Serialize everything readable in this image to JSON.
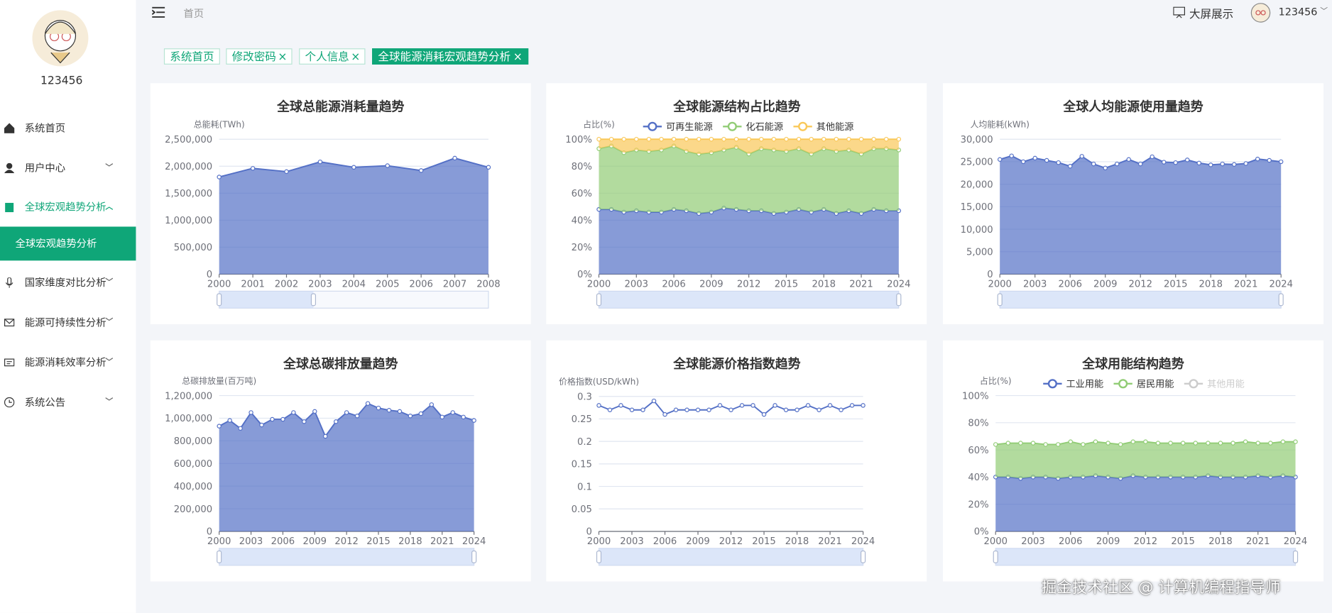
{
  "sidebar": {
    "username": "123456",
    "menu": [
      "系统首页",
      "用户中心",
      "全球宏观趋势分析",
      "全球宏观趋势分析",
      "国家维度对比分析",
      "能源可持续性分析",
      "能源消耗效率分析",
      "系统公告"
    ]
  },
  "header": {
    "breadcrumb": "首页",
    "screen_button": "大屏展示",
    "user": "123456"
  },
  "tabs": [
    "系统首页",
    "修改密码",
    "个人信息",
    "全球能源消耗宏观趋势分析"
  ],
  "watermark": "掘金技术社区 @ 计算机编程指导师",
  "chart_data": [
    {
      "type": "line",
      "title": "全球总能源消耗量趋势",
      "y_label": "总能耗(TWh)",
      "grid": true,
      "area": true,
      "categories": [
        "2000",
        "2001",
        "2002",
        "2003",
        "2004",
        "2005",
        "2006",
        "2007",
        "2008"
      ],
      "series": [
        {
          "color": "#5470c6",
          "values": [
            1800000,
            1960000,
            1900000,
            2080000,
            1980000,
            2010000,
            1920000,
            2150000,
            1980000
          ]
        }
      ],
      "ylim": [
        0,
        2500000
      ],
      "yticks": [
        0,
        {
          "value": 500000,
          "label": "500,000"
        },
        {
          "value": 1000000,
          "label": "1,000,000"
        },
        {
          "value": 1500000,
          "label": "1,500,000"
        },
        {
          "value": 2000000,
          "label": "2,000,000"
        },
        {
          "value": 2500000,
          "label": "2,500,000"
        }
      ]
    },
    {
      "type": "line",
      "title": "全球能源结构占比趋势",
      "y_label": "占比(%)",
      "grid": true,
      "area": true,
      "stack": true,
      "legend": "top",
      "categories": [
        "2000",
        null,
        null,
        "2003",
        null,
        null,
        "2006",
        null,
        null,
        "2009",
        null,
        null,
        "2012",
        null,
        null,
        "2015",
        null,
        null,
        "2018",
        null,
        null,
        "2021",
        null,
        null,
        "2024"
      ],
      "series": [
        {
          "name": "可再生能源",
          "color": "#5470c6",
          "values": [
            48,
            48,
            46,
            47,
            46,
            46,
            48,
            47,
            45,
            46,
            49,
            48,
            47,
            47,
            45,
            46,
            48,
            46,
            48,
            45,
            47,
            45,
            48,
            47,
            47
          ]
        },
        {
          "name": "化石能源",
          "color": "#91cc75",
          "values": [
            45,
            47,
            44,
            45,
            45,
            46,
            47,
            44,
            44,
            44,
            43,
            46,
            42,
            46,
            47,
            45,
            45,
            43,
            45,
            46,
            45,
            44,
            45,
            46,
            45
          ]
        },
        {
          "name": "其他能源",
          "color": "#fac858",
          "values": [
            7,
            5,
            10,
            8,
            9,
            8,
            5,
            9,
            11,
            10,
            8,
            6,
            11,
            7,
            8,
            9,
            7,
            11,
            7,
            9,
            8,
            11,
            7,
            7,
            8
          ]
        }
      ],
      "ylim": [
        0,
        100
      ],
      "yticks": [
        {
          "value": 0,
          "label": "0%"
        },
        {
          "value": 20,
          "label": "20%"
        },
        {
          "value": 40,
          "label": "40%"
        },
        {
          "value": 60,
          "label": "60%"
        },
        {
          "value": 80,
          "label": "80%"
        },
        {
          "value": 100,
          "label": "100%"
        }
      ]
    },
    {
      "type": "line",
      "title": "全球人均能源使用量趋势",
      "y_label": "人均能耗(kWh)",
      "grid": true,
      "area": true,
      "categories": [
        "2000",
        null,
        null,
        "2003",
        null,
        null,
        "2006",
        null,
        null,
        "2009",
        null,
        null,
        "2012",
        null,
        null,
        "2015",
        null,
        null,
        "2018",
        null,
        null,
        "2021",
        null,
        null,
        "2024"
      ],
      "series": [
        {
          "color": "#5470c6",
          "values": [
            25500,
            26300,
            25000,
            25800,
            25300,
            24800,
            24000,
            26200,
            24500,
            23600,
            24500,
            25500,
            24500,
            26100,
            24900,
            24800,
            25400,
            24700,
            24300,
            24500,
            24400,
            24600,
            25600,
            25300,
            25000
          ]
        }
      ],
      "ylim": [
        0,
        30000
      ],
      "yticks": [
        0,
        {
          "value": 5000,
          "label": "5,000"
        },
        {
          "value": 10000,
          "label": "10,000"
        },
        {
          "value": 15000,
          "label": "15,000"
        },
        {
          "value": 20000,
          "label": "20,000"
        },
        {
          "value": 25000,
          "label": "25,000"
        },
        {
          "value": 30000,
          "label": "30,000"
        }
      ]
    },
    {
      "type": "line",
      "title": "全球总碳排放量趋势",
      "y_label": "总碳排放量(百万吨)",
      "grid": true,
      "area": true,
      "categories": [
        "2000",
        null,
        null,
        "2003",
        null,
        null,
        "2006",
        null,
        null,
        "2009",
        null,
        null,
        "2012",
        null,
        null,
        "2015",
        null,
        null,
        "2018",
        null,
        null,
        "2021",
        null,
        null,
        "2024"
      ],
      "series": [
        {
          "color": "#5470c6",
          "values": [
            930000,
            980000,
            910000,
            1050000,
            940000,
            990000,
            990000,
            1050000,
            970000,
            1060000,
            840000,
            970000,
            1050000,
            1020000,
            1130000,
            1090000,
            1070000,
            1060000,
            1020000,
            1040000,
            1120000,
            1010000,
            1050000,
            1010000,
            980000
          ]
        }
      ],
      "ylim": [
        0,
        1200000
      ],
      "yticks": [
        0,
        {
          "value": 200000,
          "label": "200,000"
        },
        {
          "value": 400000,
          "label": "400,000"
        },
        {
          "value": 600000,
          "label": "600,000"
        },
        {
          "value": 800000,
          "label": "800,000"
        },
        {
          "value": 1000000,
          "label": "1,000,000"
        },
        {
          "value": 1200000,
          "label": "1,200,000"
        }
      ]
    },
    {
      "type": "line",
      "title": "全球能源价格指数趋势",
      "y_label": "价格指数(USD/kWh)",
      "grid": true,
      "area": false,
      "categories": [
        "2000",
        null,
        null,
        "2003",
        null,
        null,
        "2006",
        null,
        null,
        "2009",
        null,
        null,
        "2012",
        null,
        null,
        "2015",
        null,
        null,
        "2018",
        null,
        null,
        "2021",
        null,
        null,
        "2024"
      ],
      "series": [
        {
          "color": "#5470c6",
          "values": [
            0.28,
            0.27,
            0.28,
            0.27,
            0.27,
            0.29,
            0.26,
            0.27,
            0.27,
            0.27,
            0.27,
            0.28,
            0.27,
            0.28,
            0.28,
            0.26,
            0.28,
            0.27,
            0.27,
            0.28,
            0.27,
            0.28,
            0.27,
            0.28,
            0.28
          ]
        }
      ],
      "ylim": [
        0,
        0.3
      ],
      "yticks": [
        0,
        0.05,
        0.1,
        0.15,
        0.2,
        0.25,
        0.3
      ]
    },
    {
      "type": "line",
      "title": "全球用能结构趋势",
      "y_label": "占比(%)",
      "grid": true,
      "area": true,
      "stack": true,
      "legend": "top",
      "categories": [
        "2000",
        null,
        null,
        "2003",
        null,
        null,
        "2006",
        null,
        null,
        "2009",
        null,
        null,
        "2012",
        null,
        null,
        "2015",
        null,
        null,
        "2018",
        null,
        null,
        "2021",
        null,
        null,
        "2024"
      ],
      "series": [
        {
          "name": "工业用能",
          "color": "#5470c6",
          "values": [
            40,
            40,
            39,
            40,
            40,
            39,
            40,
            40,
            41,
            40,
            39,
            41,
            40,
            40,
            40,
            40,
            40,
            41,
            40,
            40,
            40,
            41,
            40,
            41,
            40
          ]
        },
        {
          "name": "居民用能",
          "color": "#91cc75",
          "values": [
            24,
            25,
            26,
            25,
            24,
            25,
            26,
            24,
            25,
            25,
            25,
            25,
            26,
            25,
            25,
            25,
            25,
            24,
            25,
            25,
            26,
            24,
            25,
            25,
            26
          ]
        },
        {
          "name": "其他用能",
          "hidden": true
        }
      ],
      "ylim": [
        0,
        100
      ],
      "yticks": [
        {
          "value": 0,
          "label": "0%"
        },
        {
          "value": 20,
          "label": "20%"
        },
        {
          "value": 40,
          "label": "40%"
        },
        {
          "value": 60,
          "label": "60%"
        },
        {
          "value": 80,
          "label": "80%"
        },
        {
          "value": 100,
          "label": "100%"
        }
      ]
    }
  ]
}
